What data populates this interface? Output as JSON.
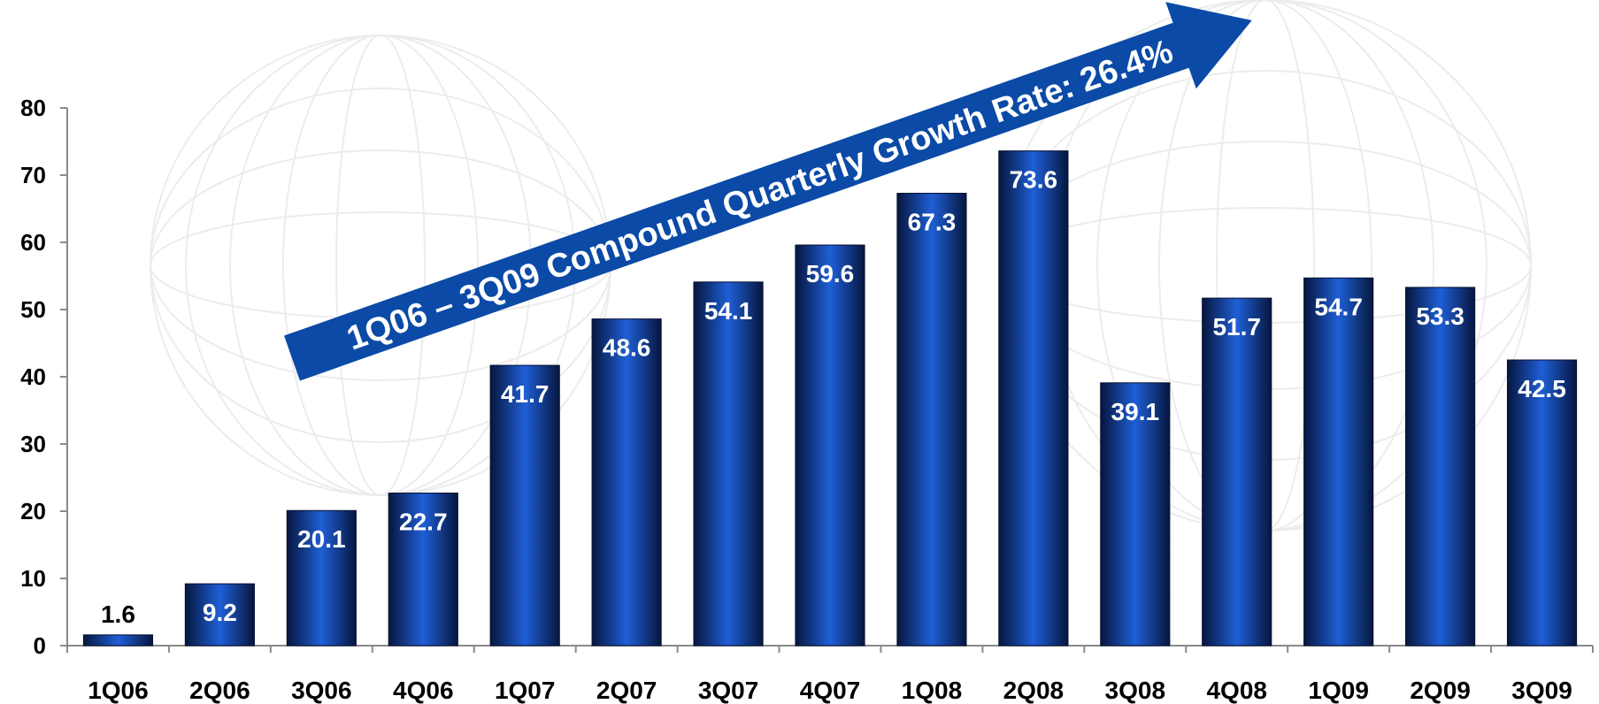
{
  "chart_data": {
    "type": "bar",
    "categories": [
      "1Q06",
      "2Q06",
      "3Q06",
      "4Q06",
      "1Q07",
      "2Q07",
      "3Q07",
      "4Q07",
      "1Q08",
      "2Q08",
      "3Q08",
      "4Q08",
      "1Q09",
      "2Q09",
      "3Q09"
    ],
    "values": [
      1.6,
      9.2,
      20.1,
      22.7,
      41.7,
      48.6,
      54.1,
      59.6,
      67.3,
      73.6,
      39.1,
      51.7,
      54.7,
      53.3,
      42.5
    ],
    "data_labels": [
      "1.6",
      "9.2",
      "20.1",
      "22.7",
      "41.7",
      "48.6",
      "54.1",
      "59.6",
      "67.3",
      "73.6",
      "39.1",
      "51.7",
      "54.7",
      "53.3",
      "42.5"
    ],
    "title": "",
    "xlabel": "",
    "ylabel": "",
    "ylim": [
      0,
      80
    ],
    "yticks": [
      0,
      10,
      20,
      30,
      40,
      50,
      60,
      70,
      80
    ],
    "ytick_labels": [
      "0",
      "10",
      "20",
      "30",
      "40",
      "50",
      "60",
      "70",
      "80"
    ],
    "grid": false,
    "legend": "none",
    "annotation": "1Q06 – 3Q09 Compound Quarterly Growth Rate: 26.4%",
    "colors": {
      "bar_center": "#1f5fd6",
      "bar_edge": "#06163f",
      "arrow": "#0b4aa6",
      "watermark": "#ececec"
    }
  }
}
